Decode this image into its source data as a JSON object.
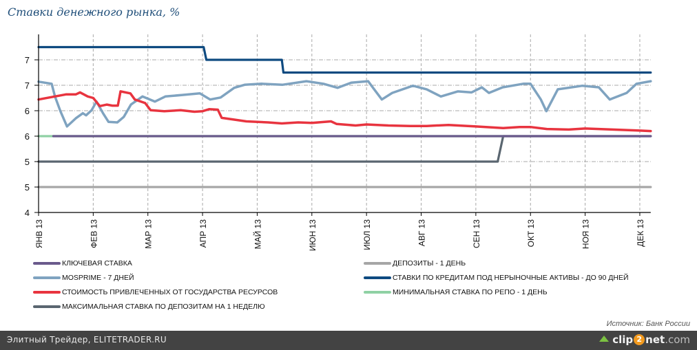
{
  "footer": {
    "site_label": "Элитный Трейдер, ELITETRADER.RU",
    "logo": {
      "icon": "upload-arrow-icon",
      "text_left": "clip",
      "text_mid": "2",
      "text_right": "net",
      "text_suffix": ".com"
    }
  },
  "chart_data": {
    "type": "line",
    "title": "Ставки денежного рынка, %",
    "source": "Источник: Банк России",
    "xlabel": "",
    "ylabel": "",
    "x_tick_labels": [
      "ЯНВ 13",
      "ФЕВ 13",
      "МАР 13",
      "АПР 13",
      "МАЙ 13",
      "ИЮН 13",
      "ИЮЛ 13",
      "АВГ 13",
      "СЕН 13",
      "ОКТ 13",
      "НОЯ 13",
      "ДЕК 13"
    ],
    "xlim": [
      0,
      11.2
    ],
    "y_ticks": [
      4,
      4.5,
      5,
      5.5,
      6,
      6.5,
      7
    ],
    "y_tick_labels": [
      "4",
      "5",
      "5",
      "6",
      "6",
      "7",
      "7"
    ],
    "ylim": [
      4,
      7.5
    ],
    "grid": true,
    "legend_position": "bottom",
    "series": [
      {
        "name": "КЛЮЧЕВАЯ СТАВКА",
        "color": "#6a5a8c",
        "points": [
          [
            0.27,
            5.5
          ],
          [
            11.2,
            5.5
          ]
        ]
      },
      {
        "name": "MOSPRIME - 7 ДНЕЙ",
        "color": "#7fa3c0",
        "points": [
          [
            0,
            6.57
          ],
          [
            0.24,
            6.53
          ],
          [
            0.3,
            6.28
          ],
          [
            0.4,
            5.99
          ],
          [
            0.52,
            5.69
          ],
          [
            0.68,
            5.85
          ],
          [
            0.81,
            5.95
          ],
          [
            0.87,
            5.91
          ],
          [
            0.97,
            6.01
          ],
          [
            1.06,
            6.18
          ],
          [
            1.18,
            5.95
          ],
          [
            1.28,
            5.78
          ],
          [
            1.44,
            5.77
          ],
          [
            1.56,
            5.88
          ],
          [
            1.69,
            6.12
          ],
          [
            1.9,
            6.28
          ],
          [
            2.13,
            6.18
          ],
          [
            2.32,
            6.28
          ],
          [
            2.63,
            6.31
          ],
          [
            2.95,
            6.34
          ],
          [
            3.14,
            6.22
          ],
          [
            3.33,
            6.26
          ],
          [
            3.58,
            6.45
          ],
          [
            3.77,
            6.51
          ],
          [
            4.08,
            6.53
          ],
          [
            4.46,
            6.51
          ],
          [
            4.9,
            6.58
          ],
          [
            5.21,
            6.53
          ],
          [
            5.47,
            6.45
          ],
          [
            5.72,
            6.55
          ],
          [
            6.03,
            6.58
          ],
          [
            6.16,
            6.39
          ],
          [
            6.28,
            6.22
          ],
          [
            6.47,
            6.35
          ],
          [
            6.85,
            6.49
          ],
          [
            7.1,
            6.42
          ],
          [
            7.36,
            6.28
          ],
          [
            7.67,
            6.38
          ],
          [
            7.92,
            6.36
          ],
          [
            8.11,
            6.46
          ],
          [
            8.24,
            6.35
          ],
          [
            8.49,
            6.46
          ],
          [
            8.87,
            6.53
          ],
          [
            9.0,
            6.53
          ],
          [
            9.19,
            6.22
          ],
          [
            9.29,
            5.99
          ],
          [
            9.5,
            6.42
          ],
          [
            9.95,
            6.49
          ],
          [
            10.25,
            6.46
          ],
          [
            10.45,
            6.22
          ],
          [
            10.76,
            6.35
          ],
          [
            10.94,
            6.53
          ],
          [
            11.2,
            6.58
          ]
        ]
      },
      {
        "name": "СТОИМОСТЬ ПРИВЛЕЧЕННЫХ ОТ ГОСУДАРСТВА РЕСУРСОВ",
        "color": "#e8343f",
        "points": [
          [
            0,
            6.22
          ],
          [
            0.5,
            6.32
          ],
          [
            0.68,
            6.32
          ],
          [
            0.76,
            6.36
          ],
          [
            0.9,
            6.28
          ],
          [
            1.0,
            6.25
          ],
          [
            1.12,
            6.09
          ],
          [
            1.25,
            6.12
          ],
          [
            1.35,
            6.1
          ],
          [
            1.45,
            6.1
          ],
          [
            1.5,
            6.38
          ],
          [
            1.68,
            6.34
          ],
          [
            1.76,
            6.22
          ],
          [
            1.95,
            6.15
          ],
          [
            2.05,
            6.01
          ],
          [
            2.3,
            5.99
          ],
          [
            2.6,
            6.01
          ],
          [
            2.85,
            5.98
          ],
          [
            3.0,
            5.99
          ],
          [
            3.12,
            6.03
          ],
          [
            3.28,
            6.02
          ],
          [
            3.35,
            5.86
          ],
          [
            3.55,
            5.83
          ],
          [
            3.8,
            5.79
          ],
          [
            4.2,
            5.77
          ],
          [
            4.45,
            5.75
          ],
          [
            4.75,
            5.77
          ],
          [
            5.0,
            5.76
          ],
          [
            5.35,
            5.79
          ],
          [
            5.45,
            5.74
          ],
          [
            5.8,
            5.71
          ],
          [
            6.0,
            5.73
          ],
          [
            6.4,
            5.71
          ],
          [
            6.8,
            5.7
          ],
          [
            7.1,
            5.7
          ],
          [
            7.5,
            5.72
          ],
          [
            8.0,
            5.69
          ],
          [
            8.5,
            5.66
          ],
          [
            8.8,
            5.68
          ],
          [
            9.0,
            5.68
          ],
          [
            9.3,
            5.64
          ],
          [
            9.7,
            5.63
          ],
          [
            10.0,
            5.65
          ],
          [
            10.5,
            5.63
          ],
          [
            11.0,
            5.61
          ],
          [
            11.2,
            5.6
          ]
        ]
      },
      {
        "name": "МАКСИМАЛЬНАЯ СТАВКА ПО ДЕПОЗИТАМ НА 1 НЕДЕЛЮ",
        "color": "#5a6670",
        "points": [
          [
            0,
            5.0
          ],
          [
            8.4,
            5.0
          ],
          [
            8.5,
            5.5
          ],
          [
            11.2,
            5.5
          ]
        ]
      },
      {
        "name": "ДЕПОЗИТЫ - 1 ДЕНЬ",
        "color": "#a6a6a6",
        "points": [
          [
            0,
            4.5
          ],
          [
            11.2,
            4.5
          ]
        ]
      },
      {
        "name": "СТАВКИ ПО КРЕДИТАМ ПОД НЕРЫНОЧНЫЕ АКТИВЫ - ДО 90 ДНЕЙ",
        "color": "#0e4a80",
        "points": [
          [
            0,
            7.25
          ],
          [
            3.02,
            7.25
          ],
          [
            3.07,
            7.0
          ],
          [
            4.45,
            7.0
          ],
          [
            4.48,
            6.75
          ],
          [
            11.2,
            6.75
          ]
        ]
      },
      {
        "name": "МИНИМАЛЬНАЯ СТАВКА ПО РЕПО - 1 ДЕНЬ",
        "color": "#8fd1a4",
        "points": [
          [
            0,
            5.5
          ],
          [
            8.52,
            5.5
          ]
        ]
      }
    ],
    "legend_layout": [
      {
        "col": 0,
        "row": 0,
        "series": 0
      },
      {
        "col": 0,
        "row": 1,
        "series": 1
      },
      {
        "col": 0,
        "row": 2,
        "series": 2
      },
      {
        "col": 0,
        "row": 3,
        "series": 3
      },
      {
        "col": 1,
        "row": 0,
        "series": 4
      },
      {
        "col": 1,
        "row": 1,
        "series": 5
      },
      {
        "col": 1,
        "row": 2,
        "series": 6
      }
    ]
  }
}
